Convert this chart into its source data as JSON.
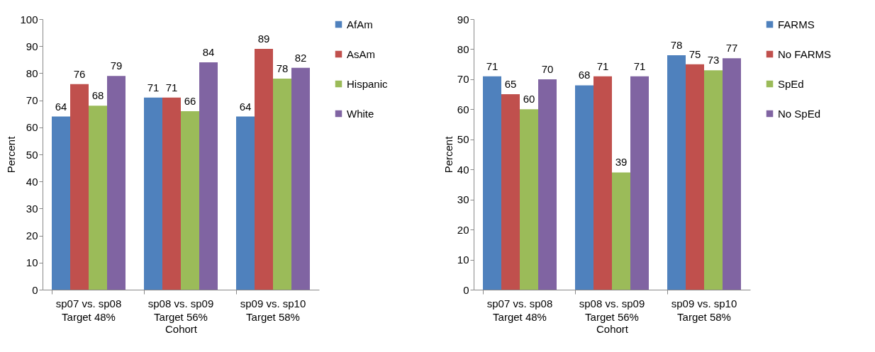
{
  "chart_data": [
    {
      "type": "bar",
      "categories": [
        "sp07 vs. sp08\nTarget 48%",
        "sp08 vs. sp09\nTarget 56%",
        "sp09 vs. sp10\nTarget 58%"
      ],
      "xlabel": "Cohort",
      "ylabel": "Percent",
      "ylim": [
        0,
        100
      ],
      "yticks": [
        0,
        10,
        20,
        30,
        40,
        50,
        60,
        70,
        80,
        90,
        100
      ],
      "legend": "right",
      "data_labels": true,
      "series": [
        {
          "name": "AfAm",
          "color": "#4f81bd",
          "values": [
            64,
            71,
            64
          ]
        },
        {
          "name": "AsAm",
          "color": "#c0504d",
          "values": [
            76,
            71,
            89
          ]
        },
        {
          "name": "Hispanic",
          "color": "#9bbb59",
          "values": [
            68,
            66,
            78
          ]
        },
        {
          "name": "White",
          "color": "#8064a2",
          "values": [
            79,
            84,
            82
          ]
        }
      ]
    },
    {
      "type": "bar",
      "categories": [
        "sp07 vs. sp08\nTarget 48%",
        "sp08 vs. sp09\nTarget 56%",
        "sp09 vs. sp10\nTarget 58%"
      ],
      "xlabel": "Cohort",
      "ylabel": "Percent",
      "ylim": [
        0,
        90
      ],
      "yticks": [
        0,
        10,
        20,
        30,
        40,
        50,
        60,
        70,
        80,
        90
      ],
      "legend": "right",
      "data_labels": true,
      "series": [
        {
          "name": "FARMS",
          "color": "#4f81bd",
          "values": [
            71,
            68,
            78
          ]
        },
        {
          "name": "No FARMS",
          "color": "#c0504d",
          "values": [
            65,
            71,
            75
          ]
        },
        {
          "name": "SpEd",
          "color": "#9bbb59",
          "values": [
            60,
            39,
            73
          ]
        },
        {
          "name": "No SpEd",
          "color": "#8064a2",
          "values": [
            70,
            71,
            77
          ]
        }
      ]
    }
  ]
}
